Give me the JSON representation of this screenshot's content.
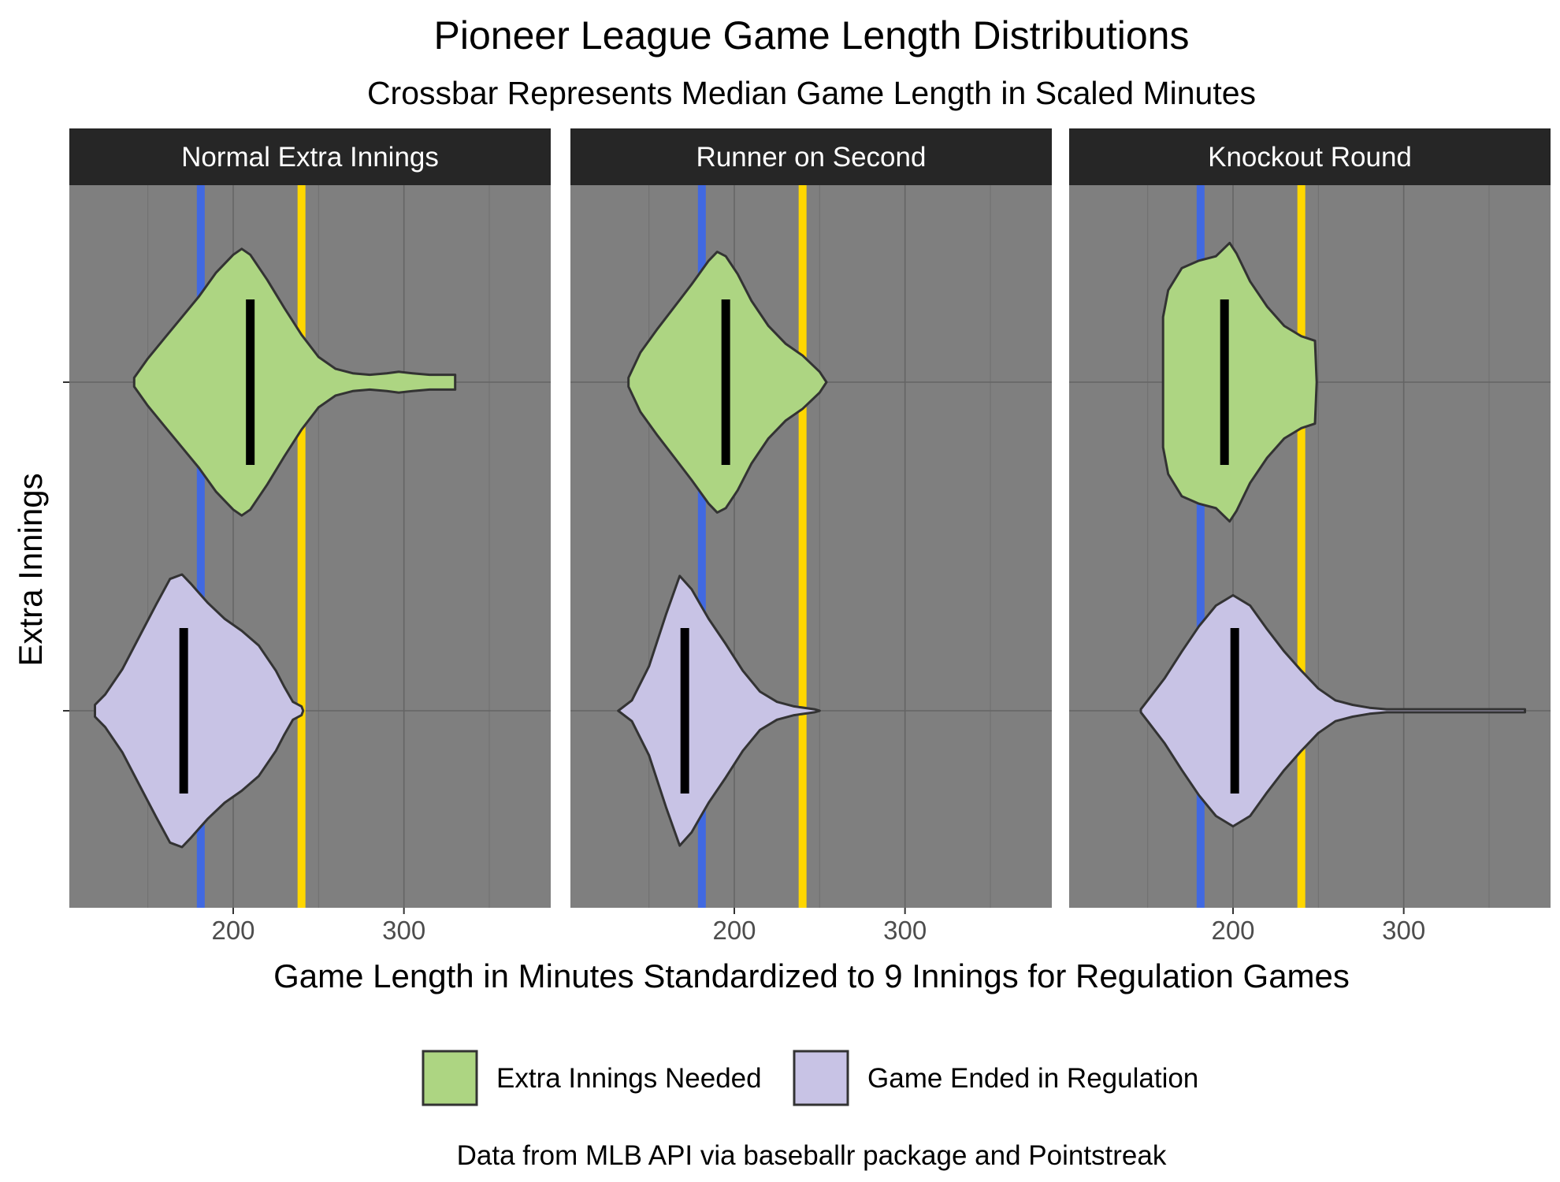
{
  "chart_data": {
    "type": "violin",
    "title": "Pioneer League Game Length Distributions",
    "subtitle": "Crossbar Represents Median Game Length in Scaled Minutes",
    "xlabel": "Game Length in Minutes Standardized to 9 Innings for Regulation Games",
    "ylabel": "Extra Innings",
    "caption": "Data from MLB API via baseballr package and Pointstreak",
    "xlim": [
      104,
      386
    ],
    "x_ticks": [
      200,
      300
    ],
    "x_tick_labels": [
      "200",
      "300"
    ],
    "reference_lines": [
      {
        "x": 181,
        "color": "#4169E1"
      },
      {
        "x": 240,
        "color": "#FFD700"
      }
    ],
    "grid": true,
    "legend": {
      "position": "bottom",
      "entries": [
        {
          "label": "Extra Innings Needed",
          "color": "#ADD582"
        },
        {
          "label": "Game Ended in Regulation",
          "color": "#C8C3E5"
        }
      ]
    },
    "categories": [
      "Extra Innings Needed",
      "Game Ended in Regulation"
    ],
    "panels": [
      {
        "label": "Normal Extra Innings",
        "series": [
          {
            "category": "Extra Innings Needed",
            "median": 210,
            "density": [
              [
                142,
                0.03
              ],
              [
                150,
                0.16
              ],
              [
                160,
                0.3
              ],
              [
                170,
                0.44
              ],
              [
                180,
                0.58
              ],
              [
                190,
                0.74
              ],
              [
                200,
                0.86
              ],
              [
                205,
                0.9
              ],
              [
                210,
                0.86
              ],
              [
                220,
                0.69
              ],
              [
                230,
                0.5
              ],
              [
                240,
                0.32
              ],
              [
                250,
                0.17
              ],
              [
                260,
                0.09
              ],
              [
                270,
                0.06
              ],
              [
                280,
                0.05
              ],
              [
                290,
                0.06
              ],
              [
                297,
                0.07
              ],
              [
                305,
                0.06
              ],
              [
                315,
                0.05
              ],
              [
                325,
                0.05
              ],
              [
                330,
                0.05
              ]
            ]
          },
          {
            "category": "Game Ended in Regulation",
            "median": 171,
            "density": [
              [
                119,
                0.04
              ],
              [
                125,
                0.11
              ],
              [
                135,
                0.28
              ],
              [
                145,
                0.5
              ],
              [
                155,
                0.72
              ],
              [
                163,
                0.89
              ],
              [
                170,
                0.92
              ],
              [
                175,
                0.86
              ],
              [
                185,
                0.73
              ],
              [
                195,
                0.62
              ],
              [
                205,
                0.54
              ],
              [
                215,
                0.44
              ],
              [
                225,
                0.27
              ],
              [
                230,
                0.16
              ],
              [
                235,
                0.06
              ],
              [
                240,
                0.03
              ],
              [
                241,
                0.0
              ]
            ]
          }
        ]
      },
      {
        "label": "Runner on Second",
        "series": [
          {
            "category": "Extra Innings Needed",
            "median": 195,
            "density": [
              [
                138,
                0.03
              ],
              [
                145,
                0.2
              ],
              [
                155,
                0.36
              ],
              [
                165,
                0.51
              ],
              [
                175,
                0.66
              ],
              [
                185,
                0.82
              ],
              [
                190,
                0.88
              ],
              [
                195,
                0.85
              ],
              [
                202,
                0.73
              ],
              [
                210,
                0.55
              ],
              [
                220,
                0.38
              ],
              [
                230,
                0.26
              ],
              [
                240,
                0.18
              ],
              [
                250,
                0.07
              ],
              [
                254,
                0.0
              ]
            ]
          },
          {
            "category": "Game Ended in Regulation",
            "median": 171,
            "density": [
              [
                132,
                0.0
              ],
              [
                140,
                0.07
              ],
              [
                150,
                0.3
              ],
              [
                160,
                0.65
              ],
              [
                168,
                0.91
              ],
              [
                175,
                0.82
              ],
              [
                185,
                0.62
              ],
              [
                195,
                0.45
              ],
              [
                205,
                0.27
              ],
              [
                215,
                0.13
              ],
              [
                225,
                0.06
              ],
              [
                235,
                0.03
              ],
              [
                247,
                0.01
              ],
              [
                250,
                0.0
              ]
            ]
          }
        ]
      },
      {
        "label": "Knockout Round",
        "series": [
          {
            "category": "Extra Innings Needed",
            "median": 195,
            "density": [
              [
                159,
                0.44
              ],
              [
                162,
                0.62
              ],
              [
                170,
                0.77
              ],
              [
                180,
                0.82
              ],
              [
                190,
                0.85
              ],
              [
                198,
                0.94
              ],
              [
                202,
                0.87
              ],
              [
                210,
                0.68
              ],
              [
                220,
                0.51
              ],
              [
                230,
                0.38
              ],
              [
                240,
                0.31
              ],
              [
                248,
                0.28
              ],
              [
                249,
                0.0
              ]
            ]
          },
          {
            "category": "Game Ended in Regulation",
            "median": 201,
            "density": [
              [
                146,
                0.01
              ],
              [
                150,
                0.07
              ],
              [
                160,
                0.22
              ],
              [
                170,
                0.4
              ],
              [
                180,
                0.57
              ],
              [
                190,
                0.71
              ],
              [
                200,
                0.78
              ],
              [
                210,
                0.71
              ],
              [
                220,
                0.55
              ],
              [
                230,
                0.4
              ],
              [
                240,
                0.27
              ],
              [
                250,
                0.15
              ],
              [
                260,
                0.07
              ],
              [
                270,
                0.04
              ],
              [
                280,
                0.02
              ],
              [
                290,
                0.01
              ],
              [
                300,
                0.01
              ],
              [
                340,
                0.01
              ],
              [
                371,
                0.01
              ]
            ]
          }
        ]
      }
    ]
  }
}
